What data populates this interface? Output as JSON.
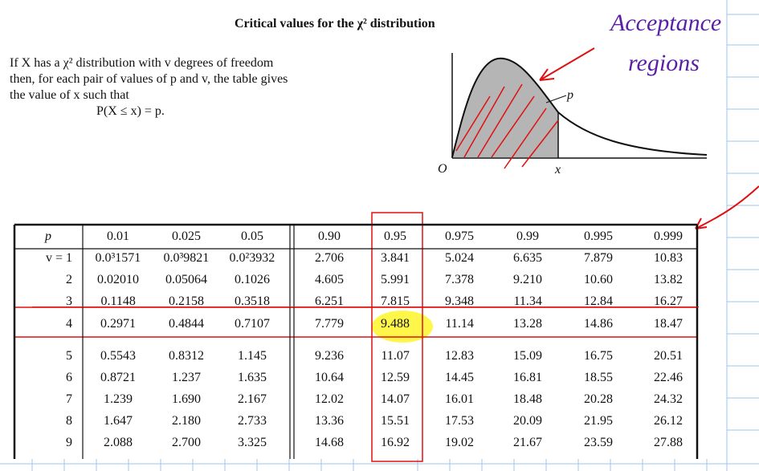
{
  "title": "Critical values for the χ² distribution",
  "intro": {
    "line1": "If X has a χ² distribution with v degrees of freedom",
    "line2": "then, for each pair of values of p and v, the table gives",
    "line3": "the value of x such that",
    "line4": "P(X ≤ x) = p."
  },
  "graph": {
    "origin": "O",
    "x_label": "x",
    "p_label": "p"
  },
  "annotation": {
    "line1": "Acceptance",
    "line2": "regions"
  },
  "table": {
    "p_header": "p",
    "columns": [
      "0.01",
      "0.025",
      "0.05",
      "0.90",
      "0.95",
      "0.975",
      "0.99",
      "0.995",
      "0.999"
    ],
    "rows": [
      {
        "v": "v = 1",
        "vals": [
          "0.0³1571",
          "0.0³9821",
          "0.0²3932",
          "2.706",
          "3.841",
          "5.024",
          "6.635",
          "7.879",
          "10.83"
        ]
      },
      {
        "v": "2",
        "vals": [
          "0.02010",
          "0.05064",
          "0.1026",
          "4.605",
          "5.991",
          "7.378",
          "9.210",
          "10.60",
          "13.82"
        ]
      },
      {
        "v": "3",
        "vals": [
          "0.1148",
          "0.2158",
          "0.3518",
          "6.251",
          "7.815",
          "9.348",
          "11.34",
          "12.84",
          "16.27"
        ]
      },
      {
        "v": "4",
        "vals": [
          "0.2971",
          "0.4844",
          "0.7107",
          "7.779",
          "9.488",
          "11.14",
          "13.28",
          "14.86",
          "18.47"
        ]
      },
      {
        "v": "5",
        "vals": [
          "0.5543",
          "0.8312",
          "1.145",
          "9.236",
          "11.07",
          "12.83",
          "15.09",
          "16.75",
          "20.51"
        ]
      },
      {
        "v": "6",
        "vals": [
          "0.8721",
          "1.237",
          "1.635",
          "10.64",
          "12.59",
          "14.45",
          "16.81",
          "18.55",
          "22.46"
        ]
      },
      {
        "v": "7",
        "vals": [
          "1.239",
          "1.690",
          "2.167",
          "12.02",
          "14.07",
          "16.01",
          "18.48",
          "20.28",
          "24.32"
        ]
      },
      {
        "v": "8",
        "vals": [
          "1.647",
          "2.180",
          "2.733",
          "13.36",
          "15.51",
          "17.53",
          "20.09",
          "21.95",
          "26.12"
        ]
      },
      {
        "v": "9",
        "vals": [
          "2.088",
          "2.700",
          "3.325",
          "14.68",
          "16.92",
          "19.02",
          "21.67",
          "23.59",
          "27.88"
        ]
      }
    ]
  }
}
